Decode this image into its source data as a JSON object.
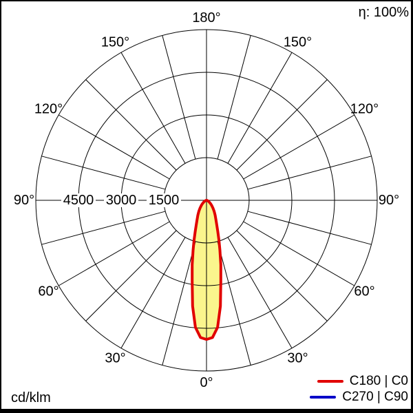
{
  "header": {
    "efficiency": "η: 100%"
  },
  "footer": {
    "unit": "cd/klm"
  },
  "legend": {
    "items": [
      {
        "label": "C180 | C0",
        "color": "#e10000"
      },
      {
        "label": "C270 | C90",
        "color": "#0000c8"
      }
    ]
  },
  "colors": {
    "grid": "#000000",
    "background": "#ffffff",
    "frame": "#000000",
    "curve_stroke": "#e10000",
    "curve_fill": "#faf58d"
  },
  "chart_data": {
    "type": "polar",
    "subtype": "photometric-luminous-intensity-distribution",
    "unit": "cd/klm",
    "efficiency_text": "η: 100%",
    "rmax": 6000,
    "rings": [
      1500,
      3000,
      4500,
      6000
    ],
    "ring_labels": [
      {
        "value": 4500,
        "label": "4500"
      },
      {
        "value": 3000,
        "label": "3000"
      },
      {
        "value": 1500,
        "label": "1500"
      }
    ],
    "spoke_step_deg": 15,
    "angle_label_degs": [
      0,
      30,
      60,
      90,
      120,
      150,
      180
    ],
    "angle_label_texts": [
      "0°",
      "30°",
      "60°",
      "90°",
      "120°",
      "150°",
      "180°"
    ],
    "legend_position": "bottom-right",
    "series": [
      {
        "name": "C180 | C0",
        "color": "#e10000",
        "fill": "#faf58d",
        "symmetric": true,
        "gamma_deg": [
          0,
          2.5,
          5,
          7.5,
          10,
          12.5,
          15,
          17.5,
          20,
          22.5,
          25,
          30,
          35,
          40,
          45,
          50,
          60,
          70,
          80,
          90
        ],
        "cd_per_klm": [
          4890,
          4830,
          4480,
          3750,
          2900,
          2320,
          1820,
          1450,
          1150,
          950,
          800,
          610,
          470,
          350,
          260,
          190,
          100,
          50,
          20,
          0
        ]
      }
    ]
  }
}
